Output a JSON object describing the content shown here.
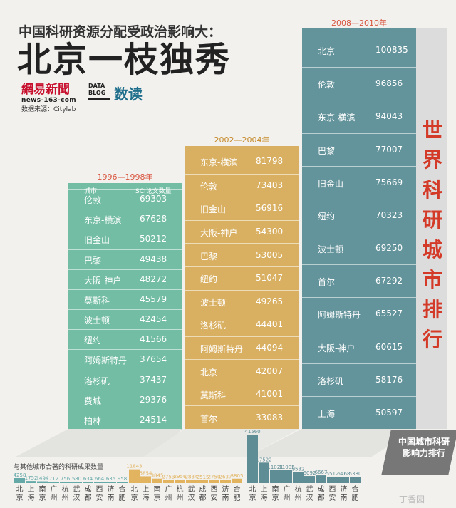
{
  "header": {
    "title_line1": "中国科研资源分配受政治影响大：",
    "title_line2": "北京一枝独秀",
    "logo_cn": "網易新聞",
    "logo_en": "news-163-com",
    "datablog_label": "DATA BLOG",
    "shudu_label": "数读",
    "source": "数据来源：Citylab"
  },
  "right_title": "世界科研城市排行",
  "badge_text": "中国城市科研影响力排行",
  "coauth_label": "与其他城市合著的科研成果数量",
  "watermark": "丁香园",
  "colors": {
    "panel1": "#72bda3",
    "panel2": "#d9b062",
    "panel3": "#64949b",
    "accent_red": "#d43a28",
    "bar_teal": "#64a8a8",
    "bar_gold": "#e2b460",
    "bar_steel": "#5f8d95"
  },
  "chart_data": [
    {
      "type": "table",
      "title": "1996—1998年",
      "columns": [
        "城市",
        "SCI论文数量"
      ],
      "rows": [
        [
          "伦敦",
          69303
        ],
        [
          "东京-横滨",
          67628
        ],
        [
          "旧金山",
          50212
        ],
        [
          "巴黎",
          49438
        ],
        [
          "大阪-神户",
          48272
        ],
        [
          "莫斯科",
          45579
        ],
        [
          "波士顿",
          42454
        ],
        [
          "纽约",
          41566
        ],
        [
          "阿姆斯特丹",
          37654
        ],
        [
          "洛杉矶",
          37437
        ],
        [
          "费城",
          29376
        ],
        [
          "柏林",
          24514
        ]
      ]
    },
    {
      "type": "table",
      "title": "2002—2004年",
      "columns": [
        "城市",
        "SCI论文数量"
      ],
      "rows": [
        [
          "东京-横滨",
          81798
        ],
        [
          "伦敦",
          73403
        ],
        [
          "旧金山",
          56916
        ],
        [
          "大阪-神户",
          54300
        ],
        [
          "巴黎",
          53005
        ],
        [
          "纽约",
          51047
        ],
        [
          "波士顿",
          49265
        ],
        [
          "洛杉矶",
          44401
        ],
        [
          "阿姆斯特丹",
          44094
        ],
        [
          "北京",
          42007
        ],
        [
          "莫斯科",
          41001
        ],
        [
          "首尔",
          33083
        ]
      ]
    },
    {
      "type": "table",
      "title": "2008—2010年",
      "columns": [
        "城市",
        "SCI论文数量"
      ],
      "rows": [
        [
          "北京",
          100835
        ],
        [
          "伦敦",
          96856
        ],
        [
          "东京-横滨",
          94043
        ],
        [
          "巴黎",
          77007
        ],
        [
          "旧金山",
          75669
        ],
        [
          "纽约",
          70323
        ],
        [
          "波士顿",
          69250
        ],
        [
          "首尔",
          67292
        ],
        [
          "阿姆斯特丹",
          65527
        ],
        [
          "大阪-神户",
          60615
        ],
        [
          "洛杉矶",
          58176
        ],
        [
          "上海",
          50597
        ]
      ]
    },
    {
      "type": "bar",
      "title": "与其他城市合著的科研成果数量",
      "categories": [
        "北京",
        "上海",
        "南京",
        "广州",
        "杭州",
        "武汉",
        "成都",
        "西安",
        "济南",
        "合肥"
      ],
      "series": [
        {
          "values": [
            4258,
            1752,
            1494,
            712,
            756,
            580,
            634,
            664,
            635,
            958
          ]
        },
        {
          "values": [
            11843,
            5854,
            3845,
            2753,
            2956,
            2834,
            2515,
            2750,
            2637,
            3805
          ]
        },
        {
          "values": [
            41560,
            17522,
            11021,
            11005,
            9532,
            6092,
            6667,
            5512,
            5468,
            5380
          ]
        }
      ]
    }
  ]
}
